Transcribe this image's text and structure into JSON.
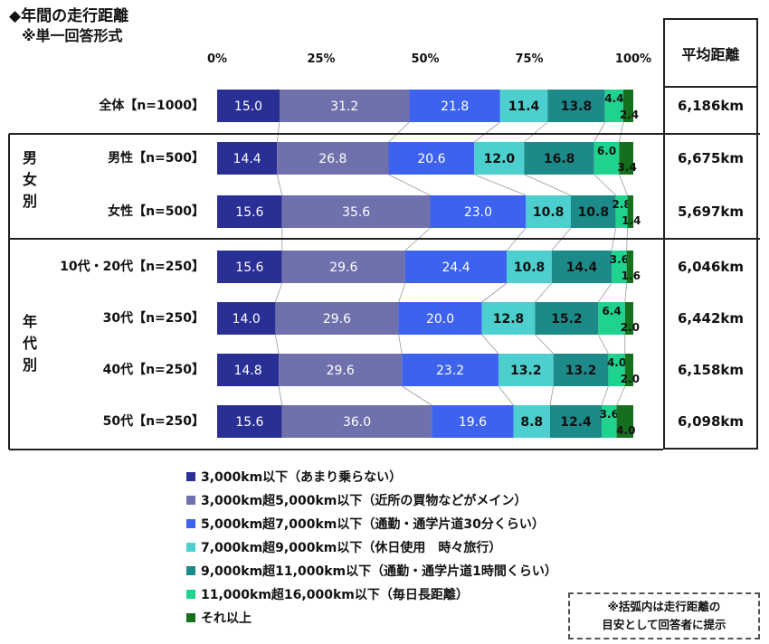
{
  "title": "◆年間の走行距離",
  "subtitle": "※単一回答形式",
  "avg_header": "平均距離",
  "groups": {
    "gender": [
      "男",
      "女",
      "別"
    ],
    "age": [
      "年",
      "代",
      "別"
    ]
  },
  "note": [
    "※括弧内は走行距離の",
    "目安として回答者に提示"
  ],
  "colors": [
    "#2a2f96",
    "#6f71ad",
    "#3d63ee",
    "#4dcfcf",
    "#1d8a8a",
    "#1fd38f",
    "#15701e"
  ],
  "chart_data": {
    "type": "bar",
    "orientation": "horizontal",
    "stacked": true,
    "xlim": [
      0,
      100
    ],
    "x_ticks": [
      "0%",
      "25%",
      "50%",
      "75%",
      "100%"
    ],
    "categories": [
      "全体【n=1000】",
      "男性【n=500】",
      "女性【n=500】",
      "10代・20代【n=250】",
      "30代【n=250】",
      "40代【n=250】",
      "50代【n=250】"
    ],
    "series": [
      {
        "name": "3,000km以下（あまり乗らない）",
        "values": [
          15.0,
          14.4,
          15.6,
          15.6,
          14.0,
          14.8,
          15.6
        ]
      },
      {
        "name": "3,000km超5,000km以下（近所の買物などがメイン）",
        "values": [
          31.2,
          26.8,
          35.6,
          29.6,
          29.6,
          29.6,
          36.0
        ]
      },
      {
        "name": "5,000km超7,000km以下（通勤・通学片道30分くらい）",
        "values": [
          21.8,
          20.6,
          23.0,
          24.4,
          20.0,
          23.2,
          19.6
        ]
      },
      {
        "name": "7,000km超9,000km以下（休日使用　時々旅行）",
        "values": [
          11.4,
          12.0,
          10.8,
          10.8,
          12.8,
          13.2,
          8.8
        ]
      },
      {
        "name": "9,000km超11,000km以下（通勤・通学片道1時間くらい）",
        "values": [
          13.8,
          16.8,
          10.8,
          14.4,
          15.2,
          13.2,
          12.4
        ]
      },
      {
        "name": "11,000km超16,000km以下（毎日長距離）",
        "values": [
          4.4,
          6.0,
          2.8,
          3.6,
          6.4,
          4.0,
          3.6
        ]
      },
      {
        "name": "それ以上",
        "values": [
          2.4,
          3.4,
          1.4,
          1.6,
          2.0,
          2.0,
          4.0
        ]
      }
    ],
    "average_distance": [
      "6,186km",
      "6,675km",
      "5,697km",
      "6,046km",
      "6,442km",
      "6,158km",
      "6,098km"
    ]
  }
}
